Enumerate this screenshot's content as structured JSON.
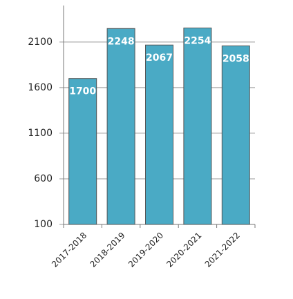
{
  "chart_data": {
    "type": "bar",
    "categories": [
      "2017-2018",
      "2018-2019",
      "2019-2020",
      "2020-2021",
      "2021-2022"
    ],
    "values": [
      1700,
      2248,
      2067,
      2254,
      2058
    ],
    "color": "#4aaac5",
    "ylim": [
      100,
      2500
    ],
    "yticks": [
      100,
      600,
      1100,
      1600,
      2100
    ],
    "grid": true
  }
}
